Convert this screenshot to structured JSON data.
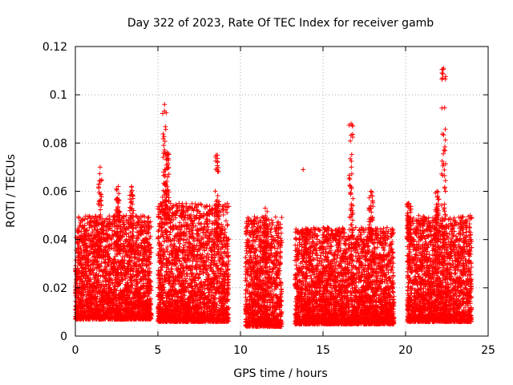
{
  "chart_data": {
    "type": "scatter",
    "title": "Day 322 of 2023, Rate Of TEC Index for receiver gamb",
    "xlabel": "GPS time / hours",
    "ylabel": "ROTI / TECUs",
    "xlim": [
      0,
      25
    ],
    "ylim": [
      0,
      0.12
    ],
    "x_ticks": [
      "0",
      "5",
      "10",
      "15",
      "20",
      "25"
    ],
    "y_ticks": [
      "0",
      "0.02",
      "0.04",
      "0.06",
      "0.08",
      "0.1",
      "0.12"
    ],
    "grid": true,
    "marker": "+",
    "color": "#ff0000",
    "segments": [
      {
        "x": [
          0.0,
          4.6
        ],
        "ymin": 0.007,
        "ymax": 0.05
      },
      {
        "x": [
          5.0,
          9.3
        ],
        "ymin": 0.006,
        "ymax": 0.055
      },
      {
        "x": [
          10.3,
          12.5
        ],
        "ymin": 0.004,
        "ymax": 0.05
      },
      {
        "x": [
          13.3,
          18.7
        ],
        "ymin": 0.005,
        "ymax": 0.045
      },
      {
        "x": [
          18.7,
          19.3
        ],
        "ymin": 0.005,
        "ymax": 0.045
      },
      {
        "x": [
          20.1,
          24.0
        ],
        "ymin": 0.006,
        "ymax": 0.05
      }
    ],
    "highlights": [
      {
        "x": 1.5,
        "ymin": 0.035,
        "ymax": 0.07
      },
      {
        "x": 2.6,
        "ymin": 0.035,
        "ymax": 0.062
      },
      {
        "x": 3.4,
        "ymin": 0.035,
        "ymax": 0.062
      },
      {
        "x": 5.4,
        "ymin": 0.05,
        "ymax": 0.096
      },
      {
        "x": 5.55,
        "ymin": 0.05,
        "ymax": 0.076
      },
      {
        "x": 8.6,
        "ymin": 0.04,
        "ymax": 0.075
      },
      {
        "x": 11.5,
        "ymin": 0.03,
        "ymax": 0.053
      },
      {
        "x": 16.7,
        "ymin": 0.04,
        "ymax": 0.088
      },
      {
        "x": 17.9,
        "ymin": 0.04,
        "ymax": 0.06
      },
      {
        "x": 20.2,
        "ymin": 0.04,
        "ymax": 0.055
      },
      {
        "x": 22.3,
        "ymin": 0.04,
        "ymax": 0.111
      },
      {
        "x": 21.9,
        "ymin": 0.04,
        "ymax": 0.06
      }
    ],
    "isolated_points": [
      {
        "x": 13.8,
        "y": 0.069
      }
    ]
  }
}
